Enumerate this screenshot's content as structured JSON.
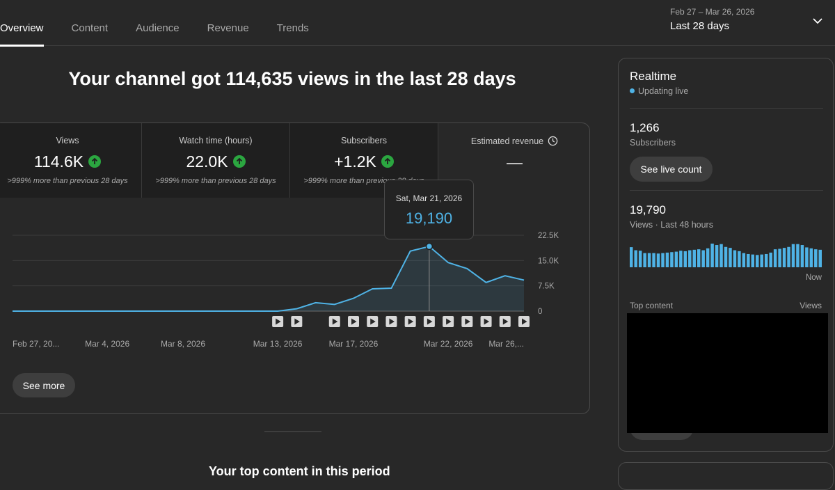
{
  "tabs": [
    {
      "label": "Overview",
      "active": true
    },
    {
      "label": "Content",
      "active": false
    },
    {
      "label": "Audience",
      "active": false
    },
    {
      "label": "Revenue",
      "active": false
    },
    {
      "label": "Trends",
      "active": false
    }
  ],
  "date_picker": {
    "range": "Feb 27 – Mar 26, 2026",
    "label": "Last 28 days",
    "icon": "chevron-down-icon"
  },
  "headline": "Your channel got 114,635 views in the last 28 days",
  "metrics": [
    {
      "title": "Views",
      "value": "114.6K",
      "trend": "up",
      "comparison": ">999% more than previous 28 days"
    },
    {
      "title": "Watch time (hours)",
      "value": "22.0K",
      "trend": "up",
      "comparison": ">999% more than previous 28 days"
    },
    {
      "title": "Subscribers",
      "value": "+1.2K",
      "trend": "up",
      "comparison": ">999% more than previous 28 days"
    },
    {
      "title": "Estimated revenue",
      "value": "—",
      "icon": "clock-icon"
    }
  ],
  "chart_data": {
    "type": "line",
    "title": "Views",
    "ylim": [
      0,
      22500
    ],
    "y_ticks": [
      "22.5K",
      "15.0K",
      "7.5K",
      "0"
    ],
    "y_tick_values": [
      22500,
      15000,
      7500,
      0
    ],
    "x_tick_labels": [
      "Feb 27, 20...",
      "Mar 4, 2026",
      "Mar 8, 2026",
      "Mar 13, 2026",
      "Mar 17, 2026",
      "Mar 22, 2026",
      "Mar 26,..."
    ],
    "x_tick_index": [
      0,
      5,
      9,
      14,
      18,
      23,
      27
    ],
    "x": [
      "Feb 27",
      "Feb 28",
      "Mar 1",
      "Mar 2",
      "Mar 3",
      "Mar 4",
      "Mar 5",
      "Mar 6",
      "Mar 7",
      "Mar 8",
      "Mar 9",
      "Mar 10",
      "Mar 11",
      "Mar 12",
      "Mar 13",
      "Mar 14",
      "Mar 15",
      "Mar 16",
      "Mar 17",
      "Mar 18",
      "Mar 19",
      "Mar 20",
      "Mar 21",
      "Mar 22",
      "Mar 23",
      "Mar 24",
      "Mar 25",
      "Mar 26"
    ],
    "values": [
      0,
      0,
      0,
      0,
      0,
      0,
      0,
      0,
      0,
      0,
      0,
      0,
      0,
      0,
      0,
      700,
      2500,
      2000,
      3800,
      6600,
      6800,
      17800,
      19190,
      14400,
      12600,
      8500,
      10500,
      9200
    ],
    "video_publish_index": [
      14,
      15,
      17,
      18,
      19,
      20,
      21,
      22,
      23,
      24,
      25,
      26,
      27
    ],
    "series_color": "#4fb3e6",
    "tooltip": {
      "index": 22,
      "date": "Sat, Mar 21, 2026",
      "value": "19,190"
    }
  },
  "see_more_label": "See more",
  "top_content_heading": "Your top content in this period",
  "realtime": {
    "title": "Realtime",
    "live_label": "Updating live",
    "subscribers_value": "1,266",
    "subscribers_label": "Subscribers",
    "live_count_button": "See live count",
    "views_value": "19,790",
    "views_label": "Views · Last 48 hours",
    "now_label": "Now",
    "top_content_label": "Top content",
    "top_views_label": "Views",
    "bars": [
      0.85,
      0.72,
      0.7,
      0.6,
      0.6,
      0.6,
      0.58,
      0.6,
      0.62,
      0.64,
      0.66,
      0.7,
      0.68,
      0.72,
      0.74,
      0.76,
      0.72,
      0.8,
      1.0,
      0.94,
      0.98,
      0.86,
      0.82,
      0.72,
      0.68,
      0.6,
      0.56,
      0.54,
      0.52,
      0.54,
      0.56,
      0.62,
      0.76,
      0.78,
      0.82,
      0.86,
      0.98,
      0.98,
      0.94,
      0.84,
      0.8,
      0.76,
      0.74
    ],
    "bar_color": "#4fb3e6"
  },
  "colors": {
    "accent": "#4fb3e6",
    "up": "#2ba640",
    "bg": "#282828"
  }
}
